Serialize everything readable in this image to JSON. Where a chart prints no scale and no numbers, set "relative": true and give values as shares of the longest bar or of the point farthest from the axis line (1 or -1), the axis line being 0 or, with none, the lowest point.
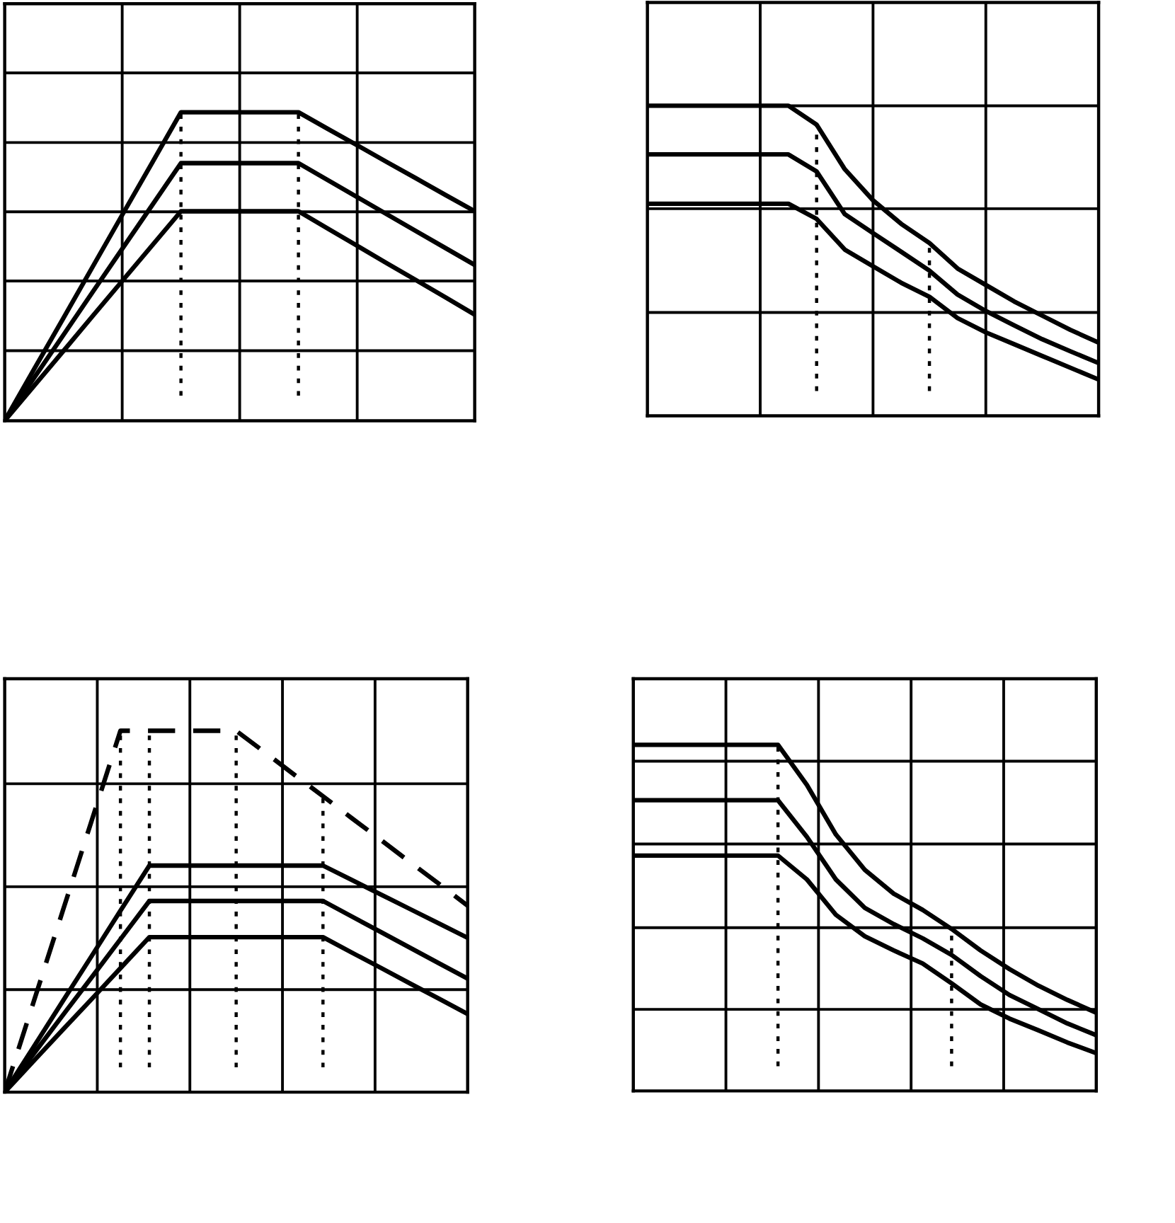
{
  "chart_data": [
    {
      "type": "line",
      "relative": true,
      "categories": [
        null,
        null,
        null,
        null,
        null,
        null,
        null,
        null,
        null,
        null,
        null,
        null,
        null,
        null,
        null,
        null,
        null
      ],
      "grid": true,
      "series": [
        {
          "color": "#000000",
          "line_style": "solid",
          "values": [
            0,
            0.167,
            0.333,
            0.5,
            0.667,
            0.833,
            1,
            1,
            1,
            1,
            1,
            0.946,
            0.893,
            0.839,
            0.786,
            0.732,
            0.679
          ]
        },
        {
          "color": "#000000",
          "line_style": "solid",
          "values": [
            0,
            0.139,
            0.278,
            0.418,
            0.557,
            0.696,
            0.835,
            0.835,
            0.835,
            0.835,
            0.835,
            0.78,
            0.725,
            0.67,
            0.615,
            0.56,
            0.505
          ]
        },
        {
          "color": "#000000",
          "line_style": "solid",
          "values": [
            0,
            0.113,
            0.226,
            0.34,
            0.453,
            0.566,
            0.679,
            0.679,
            0.679,
            0.679,
            0.679,
            0.623,
            0.567,
            0.511,
            0.456,
            0.4,
            0.344
          ]
        }
      ]
    },
    {
      "type": "line",
      "relative": true,
      "categories": [
        null,
        null,
        null,
        null,
        null,
        null,
        null,
        null,
        null,
        null,
        null,
        null,
        null,
        null,
        null,
        null,
        null
      ],
      "grid": true,
      "series": [
        {
          "color": "#000000",
          "line_style": "solid",
          "values": [
            1,
            1,
            1,
            1,
            1,
            1,
            0.939,
            0.795,
            0.695,
            0.619,
            0.557,
            0.475,
            0.422,
            0.369,
            0.323,
            0.277,
            0.236
          ]
        },
        {
          "color": "#000000",
          "line_style": "solid",
          "values": [
            0.843,
            0.843,
            0.843,
            0.843,
            0.843,
            0.843,
            0.788,
            0.65,
            0.589,
            0.529,
            0.468,
            0.391,
            0.338,
            0.292,
            0.247,
            0.208,
            0.17
          ]
        },
        {
          "color": "#000000",
          "line_style": "solid",
          "values": [
            0.684,
            0.684,
            0.684,
            0.684,
            0.684,
            0.684,
            0.635,
            0.536,
            0.482,
            0.429,
            0.384,
            0.315,
            0.269,
            0.231,
            0.193,
            0.155,
            0.117
          ]
        }
      ]
    },
    {
      "type": "line",
      "relative": true,
      "categories": [
        null,
        null,
        null,
        null,
        null,
        null,
        null,
        null,
        null,
        null,
        null,
        null,
        null,
        null,
        null,
        null,
        null
      ],
      "grid": true,
      "series": [
        {
          "color": "#000000",
          "line_style": "dashed",
          "values": [
            0,
            0.25,
            0.5,
            0.75,
            1,
            1,
            1,
            1,
            1,
            0.94,
            0.879,
            0.819,
            0.758,
            0.698,
            0.637,
            0.577,
            0.516
          ]
        },
        {
          "color": "#000000",
          "line_style": "solid",
          "values": [
            0,
            0.125,
            0.251,
            0.376,
            0.502,
            0.627,
            0.627,
            0.627,
            0.627,
            0.627,
            0.627,
            0.627,
            0.587,
            0.547,
            0.507,
            0.467,
            0.427
          ]
        },
        {
          "color": "#000000",
          "line_style": "solid",
          "values": [
            0,
            0.106,
            0.212,
            0.317,
            0.423,
            0.529,
            0.529,
            0.529,
            0.529,
            0.529,
            0.529,
            0.529,
            0.486,
            0.443,
            0.4,
            0.357,
            0.314
          ]
        },
        {
          "color": "#000000",
          "line_style": "solid",
          "values": [
            0,
            0.086,
            0.172,
            0.257,
            0.343,
            0.429,
            0.429,
            0.429,
            0.429,
            0.429,
            0.429,
            0.429,
            0.386,
            0.344,
            0.301,
            0.259,
            0.216
          ]
        }
      ]
    },
    {
      "type": "line",
      "relative": true,
      "categories": [
        null,
        null,
        null,
        null,
        null,
        null,
        null,
        null,
        null,
        null,
        null,
        null,
        null,
        null,
        null,
        null,
        null
      ],
      "grid": true,
      "series": [
        {
          "color": "#000000",
          "line_style": "solid",
          "values": [
            1,
            1,
            1,
            1,
            1,
            1,
            0.884,
            0.741,
            0.639,
            0.57,
            0.523,
            0.468,
            0.406,
            0.352,
            0.304,
            0.263,
            0.226
          ]
        },
        {
          "color": "#000000",
          "line_style": "solid",
          "values": [
            0.84,
            0.84,
            0.84,
            0.84,
            0.84,
            0.84,
            0.734,
            0.611,
            0.529,
            0.482,
            0.441,
            0.393,
            0.332,
            0.277,
            0.236,
            0.195,
            0.161
          ]
        },
        {
          "color": "#000000",
          "line_style": "solid",
          "values": [
            0.68,
            0.68,
            0.68,
            0.68,
            0.68,
            0.68,
            0.611,
            0.509,
            0.447,
            0.406,
            0.368,
            0.311,
            0.25,
            0.209,
            0.175,
            0.14,
            0.109
          ]
        }
      ]
    }
  ]
}
